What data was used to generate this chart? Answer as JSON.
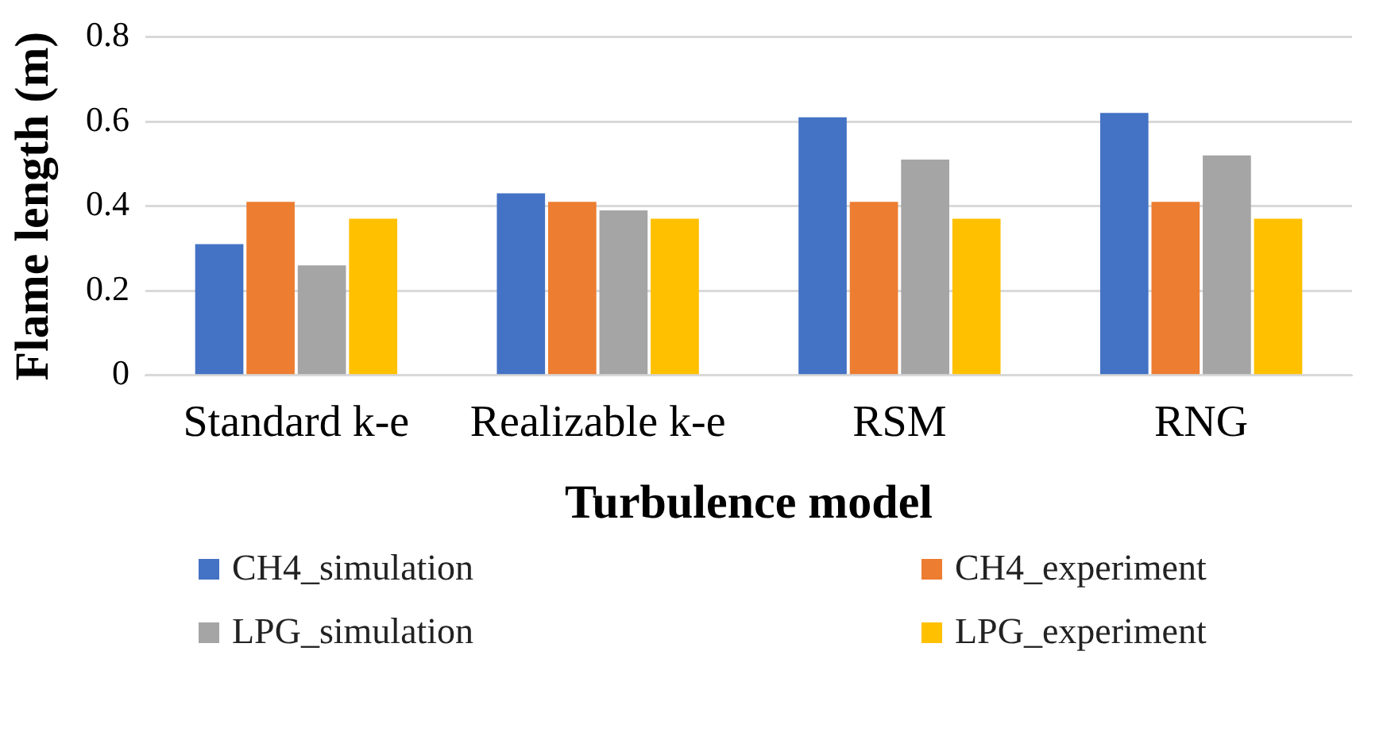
{
  "chart_data": {
    "type": "bar",
    "xlabel": "Turbulence model",
    "ylabel": "Flame length (m)",
    "categories": [
      "Standard k-e",
      "Realizable k-e",
      "RSM",
      "RNG"
    ],
    "series": [
      {
        "name": "CH4_simulation",
        "color": "#4472c4",
        "values": [
          0.31,
          0.43,
          0.61,
          0.62
        ]
      },
      {
        "name": "CH4_experiment",
        "color": "#ed7d31",
        "values": [
          0.41,
          0.41,
          0.41,
          0.41
        ]
      },
      {
        "name": "LPG_simulation",
        "color": "#a5a5a5",
        "values": [
          0.26,
          0.39,
          0.51,
          0.52
        ]
      },
      {
        "name": "LPG_experiment",
        "color": "#ffc000",
        "values": [
          0.37,
          0.37,
          0.37,
          0.37
        ]
      }
    ],
    "ylim": [
      0,
      0.8
    ],
    "yticks": [
      0,
      0.2,
      0.4,
      0.6,
      0.8
    ],
    "grid": "y",
    "legend": "bottom"
  }
}
